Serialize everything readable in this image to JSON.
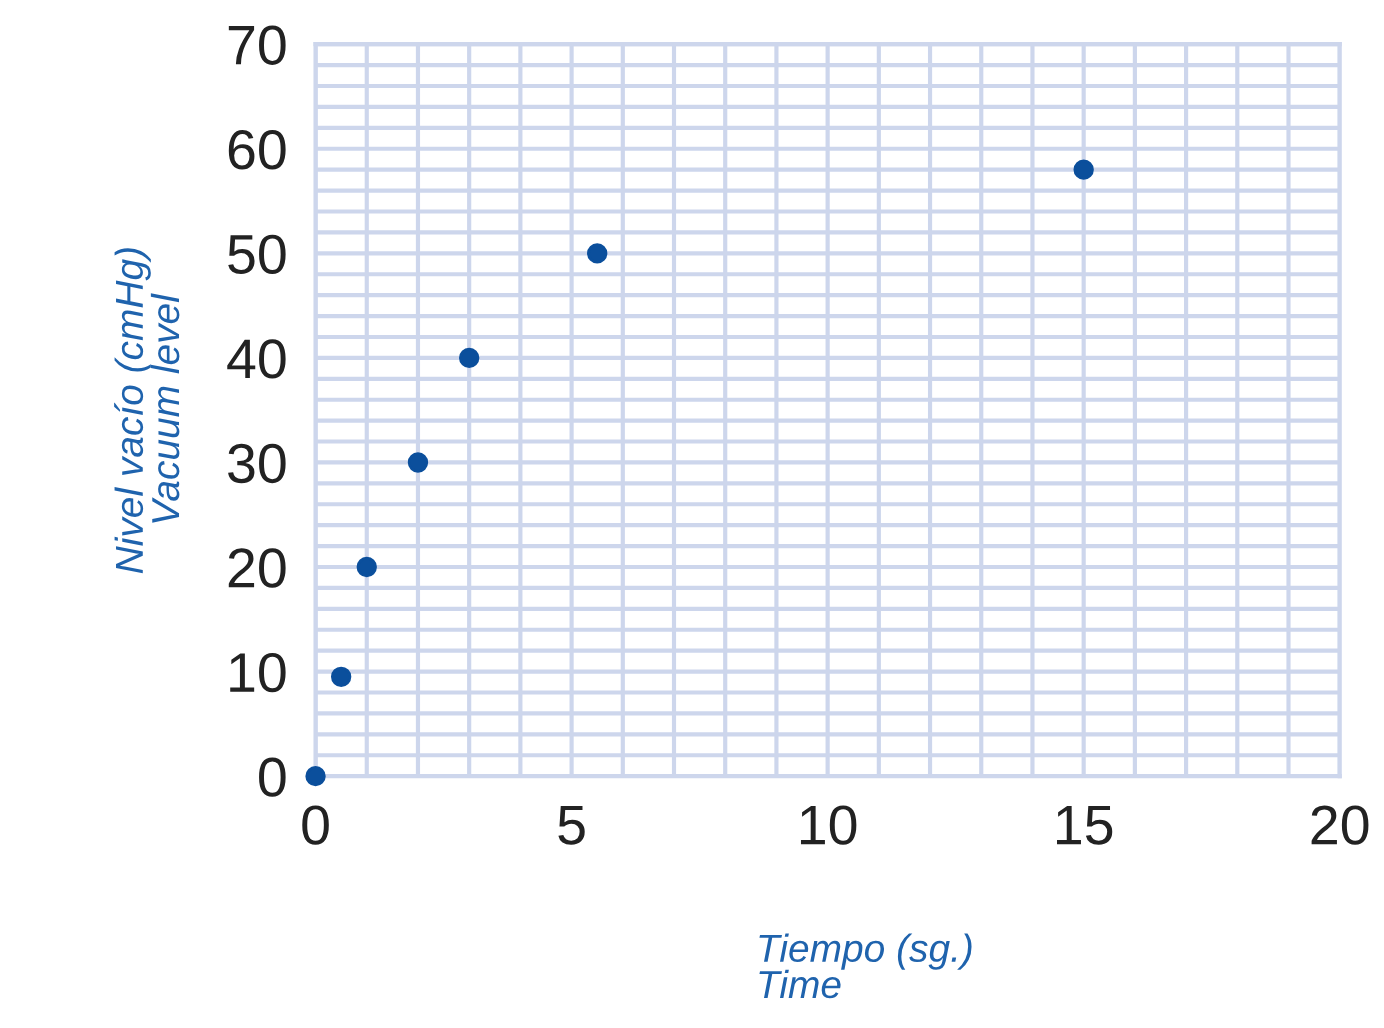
{
  "chart_data": {
    "type": "scatter",
    "xlabel": "Tiempo (sg.)\nTime",
    "ylabel": "Nivel vacío (cmHg)\nVacuum level",
    "x": [
      0,
      0.5,
      1,
      2,
      3,
      5.5,
      15
    ],
    "series": [
      {
        "color": "#0b4f9c",
        "values": [
          0,
          9.5,
          20,
          30,
          40,
          50,
          58
        ]
      }
    ],
    "marker": "circle",
    "grid": true,
    "legend": false,
    "xlim": [
      0,
      20
    ],
    "ylim": [
      0,
      70
    ],
    "xticks": [
      0,
      {
        "value": 1,
        "label": null
      },
      {
        "value": 2,
        "label": null
      },
      {
        "value": 3,
        "label": null
      },
      {
        "value": 4,
        "label": null
      },
      5,
      {
        "value": 6,
        "label": null
      },
      {
        "value": 7,
        "label": null
      },
      {
        "value": 8,
        "label": null
      },
      {
        "value": 9,
        "label": null
      },
      10,
      {
        "value": 11,
        "label": null
      },
      {
        "value": 12,
        "label": null
      },
      {
        "value": 13,
        "label": null
      },
      {
        "value": 14,
        "label": null
      },
      15,
      {
        "value": 16,
        "label": null
      },
      {
        "value": 17,
        "label": null
      },
      {
        "value": 18,
        "label": null
      },
      {
        "value": 19,
        "label": null
      },
      20
    ],
    "yticks": [
      0,
      {
        "value": 2,
        "label": null
      },
      {
        "value": 4,
        "label": null
      },
      {
        "value": 6,
        "label": null
      },
      {
        "value": 8,
        "label": null
      },
      10,
      {
        "value": 12,
        "label": null
      },
      {
        "value": 14,
        "label": null
      },
      {
        "value": 16,
        "label": null
      },
      {
        "value": 18,
        "label": null
      },
      20,
      {
        "value": 22,
        "label": null
      },
      {
        "value": 24,
        "label": null
      },
      {
        "value": 26,
        "label": null
      },
      {
        "value": 28,
        "label": null
      },
      30,
      {
        "value": 32,
        "label": null
      },
      {
        "value": 34,
        "label": null
      },
      {
        "value": 36,
        "label": null
      },
      {
        "value": 38,
        "label": null
      },
      40,
      {
        "value": 42,
        "label": null
      },
      {
        "value": 44,
        "label": null
      },
      {
        "value": 46,
        "label": null
      },
      {
        "value": 48,
        "label": null
      },
      50,
      {
        "value": 52,
        "label": null
      },
      {
        "value": 54,
        "label": null
      },
      {
        "value": 56,
        "label": null
      },
      {
        "value": 58,
        "label": null
      },
      60,
      {
        "value": 62,
        "label": null
      },
      {
        "value": 64,
        "label": null
      },
      {
        "value": 66,
        "label": null
      },
      {
        "value": 68,
        "label": null
      },
      70
    ]
  }
}
